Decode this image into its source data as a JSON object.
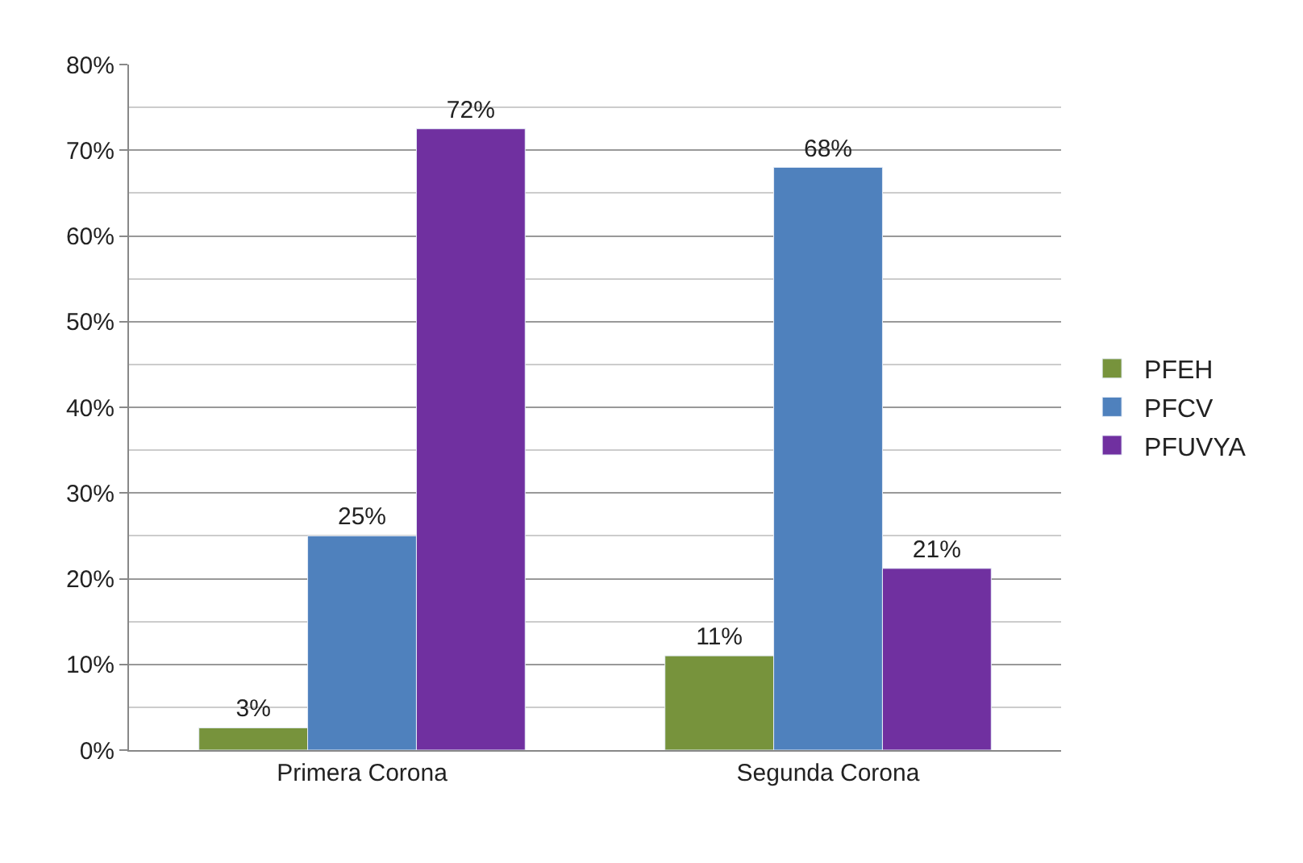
{
  "chart_data": {
    "type": "bar",
    "categories": [
      "Primera Corona",
      "Segunda Corona"
    ],
    "series": [
      {
        "name": "PFEH",
        "color": "#77933c",
        "values": [
          2.6,
          11
        ],
        "value_labels": [
          "3%",
          "11%"
        ]
      },
      {
        "name": "PFCV",
        "color": "#4f81bd",
        "values": [
          25,
          68
        ],
        "value_labels": [
          "25%",
          "68%"
        ]
      },
      {
        "name": "PFUVYA",
        "color": "#7030a0",
        "values": [
          72.5,
          21.2
        ],
        "value_labels": [
          "72%",
          "21%"
        ]
      }
    ],
    "ylim": [
      0,
      80
    ],
    "yticks": [
      {
        "value": 0,
        "label": "0%"
      },
      {
        "value": 10,
        "label": "10%"
      },
      {
        "value": 20,
        "label": "20%"
      },
      {
        "value": 30,
        "label": "30%"
      },
      {
        "value": 40,
        "label": "40%"
      },
      {
        "value": 50,
        "label": "50%"
      },
      {
        "value": 60,
        "label": "60%"
      },
      {
        "value": 70,
        "label": "70%"
      },
      {
        "value": 80,
        "label": "80%"
      }
    ],
    "grid": "y",
    "legend": "right"
  }
}
